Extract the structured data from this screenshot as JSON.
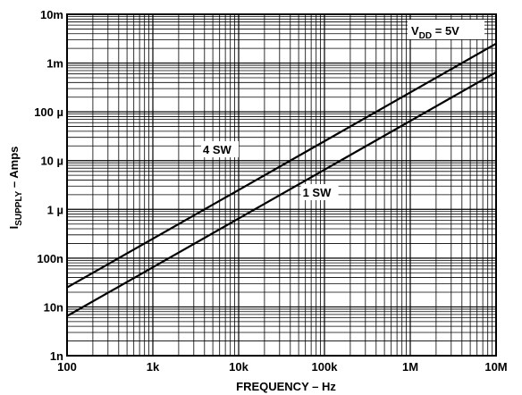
{
  "chart_data": {
    "type": "line",
    "xscale": "log",
    "yscale": "log",
    "xlim": [
      100,
      10000000
    ],
    "ylim": [
      1e-09,
      0.01
    ],
    "xlabel": "FREQUENCY – Hz",
    "ylabel_main": "I",
    "ylabel_sub": "SUPPLY",
    "ylabel_rest": " – Amps",
    "x_ticks": [
      {
        "value": 100,
        "label": "100"
      },
      {
        "value": 1000,
        "label": "1k"
      },
      {
        "value": 10000,
        "label": "10k"
      },
      {
        "value": 100000,
        "label": "100k"
      },
      {
        "value": 1000000,
        "label": "1M"
      },
      {
        "value": 10000000,
        "label": "10M"
      }
    ],
    "y_ticks": [
      {
        "value": 1e-09,
        "label": "1n"
      },
      {
        "value": 1e-08,
        "label": "10n"
      },
      {
        "value": 1e-07,
        "label": "100n"
      },
      {
        "value": 1e-06,
        "label": "1 µ"
      },
      {
        "value": 1e-05,
        "label": "10 µ"
      },
      {
        "value": 0.0001,
        "label": "100 µ"
      },
      {
        "value": 0.001,
        "label": "1m"
      },
      {
        "value": 0.01,
        "label": "10m"
      }
    ],
    "grid": true,
    "series": [
      {
        "name": "4 SW",
        "x": [
          100,
          10000000
        ],
        "y": [
          2.5e-08,
          0.0025
        ]
      },
      {
        "name": "1 SW",
        "x": [
          100,
          10000000
        ],
        "y": [
          6.5e-09,
          0.00065
        ]
      }
    ],
    "annotations": {
      "vdd_main": "V",
      "vdd_sub": "DD",
      "vdd_rest": " = 5V"
    }
  }
}
